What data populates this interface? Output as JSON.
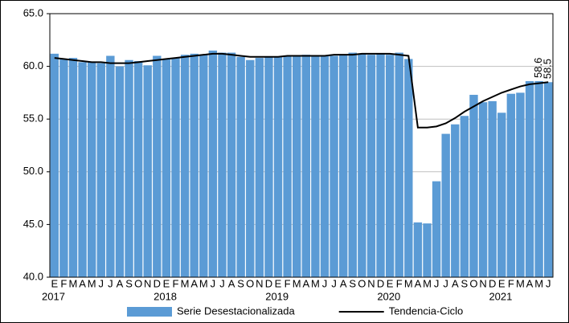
{
  "chart_data": {
    "type": "bar",
    "categories": [
      "E",
      "F",
      "M",
      "A",
      "M",
      "J",
      "J",
      "A",
      "S",
      "O",
      "N",
      "D",
      "E",
      "F",
      "M",
      "A",
      "M",
      "J",
      "J",
      "A",
      "S",
      "O",
      "N",
      "D",
      "E",
      "F",
      "M",
      "A",
      "M",
      "J",
      "J",
      "A",
      "S",
      "O",
      "N",
      "D",
      "E",
      "F",
      "M",
      "A",
      "M",
      "J",
      "J",
      "A",
      "S",
      "O",
      "N",
      "D",
      "E",
      "F",
      "M",
      "A",
      "M",
      "J"
    ],
    "years": [
      "2017",
      null,
      null,
      null,
      null,
      null,
      null,
      null,
      null,
      null,
      null,
      null,
      "2018",
      null,
      null,
      null,
      null,
      null,
      null,
      null,
      null,
      null,
      null,
      null,
      "2019",
      null,
      null,
      null,
      null,
      null,
      null,
      null,
      null,
      null,
      null,
      null,
      "2020",
      null,
      null,
      null,
      null,
      null,
      null,
      null,
      null,
      null,
      null,
      null,
      "2021",
      null,
      null,
      null,
      null,
      null
    ],
    "series": [
      {
        "name": "Serie Desestacionalizada",
        "type": "bar",
        "color": "#5b9bd5",
        "values": [
          61.2,
          60.7,
          60.8,
          60.4,
          60.4,
          60.3,
          61.0,
          60.0,
          60.6,
          60.5,
          60.1,
          61.0,
          60.7,
          60.8,
          61.1,
          61.2,
          61.1,
          61.5,
          61.3,
          61.3,
          60.9,
          60.6,
          60.8,
          60.9,
          60.9,
          61.0,
          61.0,
          61.1,
          61.0,
          61.0,
          61.0,
          61.1,
          61.3,
          61.2,
          61.1,
          61.2,
          61.1,
          61.3,
          60.7,
          45.2,
          45.1,
          49.1,
          53.6,
          54.5,
          55.3,
          57.3,
          56.6,
          56.7,
          55.6,
          57.4,
          57.5,
          58.6,
          58.6,
          58.5
        ],
        "value_labels": [
          null,
          null,
          null,
          null,
          null,
          null,
          null,
          null,
          null,
          null,
          null,
          null,
          null,
          null,
          null,
          null,
          null,
          null,
          null,
          null,
          null,
          null,
          null,
          null,
          null,
          null,
          null,
          null,
          null,
          null,
          null,
          null,
          null,
          null,
          null,
          null,
          null,
          null,
          null,
          null,
          null,
          null,
          null,
          null,
          null,
          null,
          null,
          null,
          null,
          null,
          null,
          null,
          "58.6",
          "58.5"
        ]
      },
      {
        "name": "Tendencia-Ciclo",
        "type": "line",
        "color": "#000000",
        "values": [
          60.8,
          60.7,
          60.6,
          60.5,
          60.4,
          60.4,
          60.3,
          60.3,
          60.3,
          60.4,
          60.5,
          60.6,
          60.7,
          60.8,
          60.9,
          61.0,
          61.1,
          61.2,
          61.2,
          61.1,
          61.0,
          60.9,
          60.9,
          60.9,
          60.9,
          61.0,
          61.0,
          61.0,
          61.0,
          61.0,
          61.1,
          61.1,
          61.1,
          61.2,
          61.2,
          61.2,
          61.2,
          61.1,
          61.0,
          54.2,
          54.2,
          54.3,
          54.6,
          55.1,
          55.7,
          56.2,
          56.7,
          57.1,
          57.5,
          57.8,
          58.1,
          58.3,
          58.4,
          58.5
        ]
      }
    ],
    "ylim": [
      40,
      65
    ],
    "yticks": [
      {
        "value": 40,
        "label": "40.0"
      },
      {
        "value": 45,
        "label": "45.0"
      },
      {
        "value": 50,
        "label": "50.0"
      },
      {
        "value": 55,
        "label": "55.0"
      },
      {
        "value": 60,
        "label": "60.0"
      },
      {
        "value": 65,
        "label": "65.0"
      }
    ],
    "grid": true,
    "legend": "bottom"
  }
}
